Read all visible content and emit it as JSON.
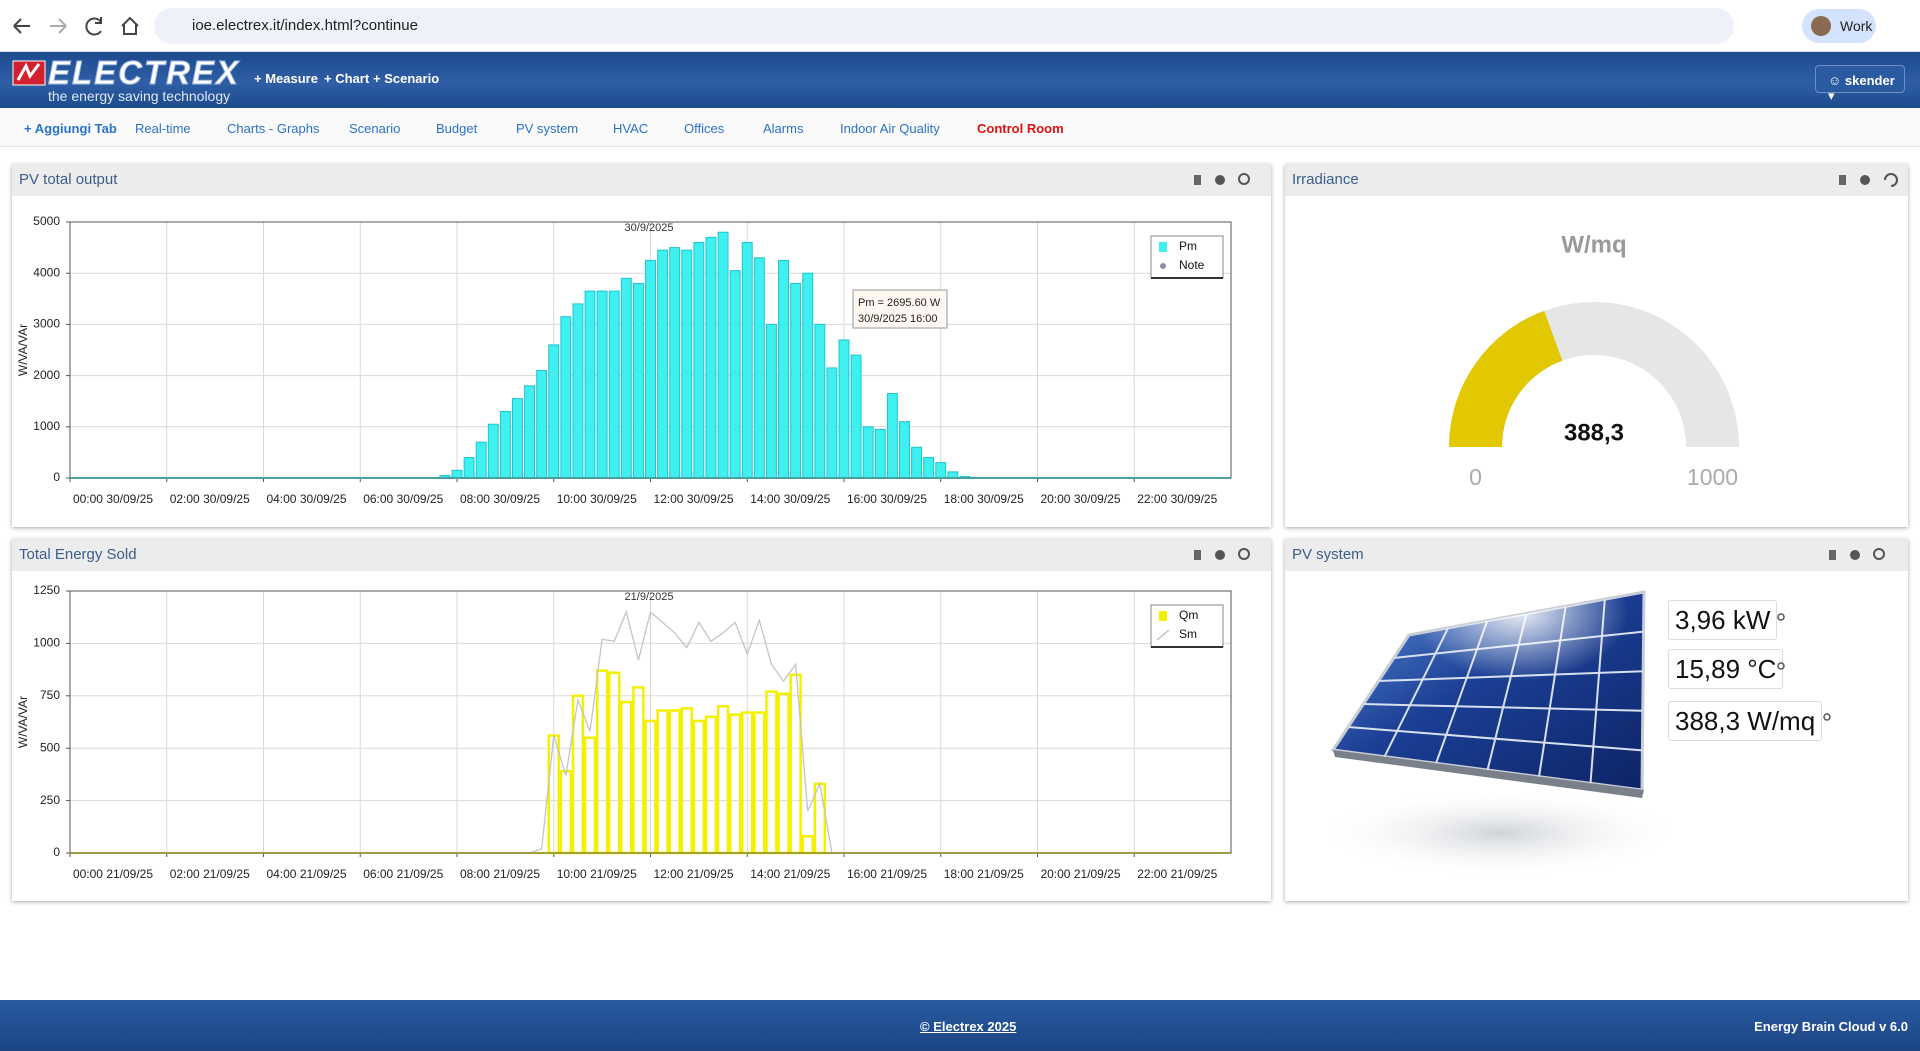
{
  "browser": {
    "url": "ioe.electrex.it/index.html?continue",
    "profile": "Work"
  },
  "header": {
    "logo": "ELECTREX",
    "tagline": "the energy saving technology",
    "nav": [
      "Measure",
      "Chart",
      "Scenario"
    ],
    "user": "skender"
  },
  "tabs": [
    "Aggiungi Tab",
    "Real-time",
    "Charts - Graphs",
    "Scenario",
    "Budget",
    "PV system",
    "HVAC",
    "Offices",
    "Alarms",
    "Indoor Air Quality",
    "Control Room"
  ],
  "chart_data": [
    {
      "type": "bar",
      "title": "PV total output",
      "y_label": "W/VA/VAr",
      "annotation": "30/9/2025",
      "tooltip": [
        "Pm = 2695.60 W",
        "30/9/2025 16:00"
      ],
      "xlim": [
        0,
        24
      ],
      "xticks": [
        {
          "value": 0,
          "label": "00:00 30/09/25"
        },
        {
          "value": 2,
          "label": "02:00 30/09/25"
        },
        {
          "value": 4,
          "label": "04:00 30/09/25"
        },
        {
          "value": 6,
          "label": "06:00 30/09/25"
        },
        {
          "value": 8,
          "label": "08:00 30/09/25"
        },
        {
          "value": 10,
          "label": "10:00 30/09/25"
        },
        {
          "value": 12,
          "label": "12:00 30/09/25"
        },
        {
          "value": 14,
          "label": "14:00 30/09/25"
        },
        {
          "value": 16,
          "label": "16:00 30/09/25"
        },
        {
          "value": 18,
          "label": "18:00 30/09/25"
        },
        {
          "value": 20,
          "label": "20:00 30/09/25"
        },
        {
          "value": 22,
          "label": "22:00 30/09/25"
        }
      ],
      "ylim": [
        0,
        5000
      ],
      "yticks": [
        0,
        1000,
        2000,
        3000,
        4000,
        5000
      ],
      "grid": true,
      "legend": "upper right",
      "series": [
        {
          "name": "Pm",
          "type": "bar",
          "color": "#3ff0f0",
          "x": [
            7.75,
            8,
            8.25,
            8.5,
            8.75,
            9,
            9.25,
            9.5,
            9.75,
            10,
            10.25,
            10.5,
            10.75,
            11,
            11.25,
            11.5,
            11.75,
            12,
            12.25,
            12.5,
            12.75,
            13,
            13.25,
            13.5,
            13.75,
            14,
            14.25,
            14.5,
            14.75,
            15,
            15.25,
            15.5,
            15.75,
            16,
            16.25,
            16.5,
            16.75,
            17,
            17.25,
            17.5,
            17.75,
            18,
            18.25,
            18.5
          ],
          "values": [
            50,
            150,
            400,
            700,
            1050,
            1300,
            1550,
            1800,
            2100,
            2600,
            3150,
            3400,
            3650,
            3650,
            3650,
            3900,
            3800,
            4250,
            4450,
            4500,
            4450,
            4600,
            4700,
            4800,
            4050,
            4600,
            4300,
            3000,
            4250,
            3800,
            4000,
            3000,
            2150,
            2695.6,
            2400,
            1000,
            950,
            1650,
            1100,
            600,
            400,
            300,
            120,
            30
          ]
        },
        {
          "name": "Note",
          "type": "scatter",
          "color": "#8a8fb0",
          "x": [],
          "values": []
        }
      ]
    },
    {
      "type": "bar",
      "title": "Total Energy Sold",
      "y_label": "W/VA/VAr",
      "annotation": "21/9/2025",
      "xlim": [
        0,
        24
      ],
      "xticks": [
        {
          "value": 0,
          "label": "00:00 21/09/25"
        },
        {
          "value": 2,
          "label": "02:00 21/09/25"
        },
        {
          "value": 4,
          "label": "04:00 21/09/25"
        },
        {
          "value": 6,
          "label": "06:00 21/09/25"
        },
        {
          "value": 8,
          "label": "08:00 21/09/25"
        },
        {
          "value": 10,
          "label": "10:00 21/09/25"
        },
        {
          "value": 12,
          "label": "12:00 21/09/25"
        },
        {
          "value": 14,
          "label": "14:00 21/09/25"
        },
        {
          "value": 16,
          "label": "16:00 21/09/25"
        },
        {
          "value": 18,
          "label": "18:00 21/09/25"
        },
        {
          "value": 20,
          "label": "20:00 21/09/25"
        },
        {
          "value": 22,
          "label": "22:00 21/09/25"
        }
      ],
      "ylim": [
        0,
        1250
      ],
      "yticks": [
        0,
        250,
        500,
        750,
        1000,
        1250
      ],
      "grid": true,
      "legend": "upper right",
      "series": [
        {
          "name": "Qm",
          "type": "bar",
          "color": "#f4f000",
          "x": [
            10,
            10.25,
            10.5,
            10.75,
            11,
            11.25,
            11.5,
            11.75,
            12,
            12.25,
            12.5,
            12.75,
            13,
            13.25,
            13.5,
            13.75,
            14,
            14.25,
            14.5,
            14.75,
            15,
            15.25,
            15.5
          ],
          "values": [
            560,
            390,
            750,
            550,
            870,
            860,
            720,
            790,
            630,
            680,
            680,
            690,
            630,
            650,
            700,
            660,
            670,
            670,
            770,
            760,
            850,
            80,
            330
          ]
        },
        {
          "name": "Sm",
          "type": "line",
          "color": "#c4c4c4",
          "x": [
            0,
            9.5,
            9.75,
            10,
            10.25,
            10.5,
            10.75,
            11,
            11.25,
            11.5,
            11.75,
            12,
            12.25,
            12.5,
            12.75,
            13,
            13.25,
            13.5,
            13.75,
            14,
            14.25,
            14.5,
            14.75,
            15,
            15.25,
            15.5,
            15.75,
            24
          ],
          "values": [
            0,
            0,
            20,
            560,
            370,
            730,
            580,
            1020,
            1010,
            1150,
            920,
            1150,
            1100,
            1050,
            980,
            1100,
            1010,
            1050,
            1100,
            950,
            1110,
            900,
            820,
            900,
            200,
            330,
            0,
            0
          ]
        }
      ]
    },
    {
      "type": "gauge",
      "title": "Irradiance",
      "unit": "W/mq",
      "values": [
        388.3
      ],
      "value_labels": [
        "388,3"
      ],
      "ylim": [
        0,
        1000
      ],
      "yticks": [
        0,
        1000
      ],
      "color": "#e2c800"
    }
  ],
  "pv_system": {
    "title": "PV system",
    "readings": [
      "3,96 kW",
      "15,89 °C",
      "388,3 W/mq"
    ]
  },
  "footer": {
    "copyright": "© Electrex 2025",
    "version": "Energy Brain Cloud v 6.0"
  }
}
